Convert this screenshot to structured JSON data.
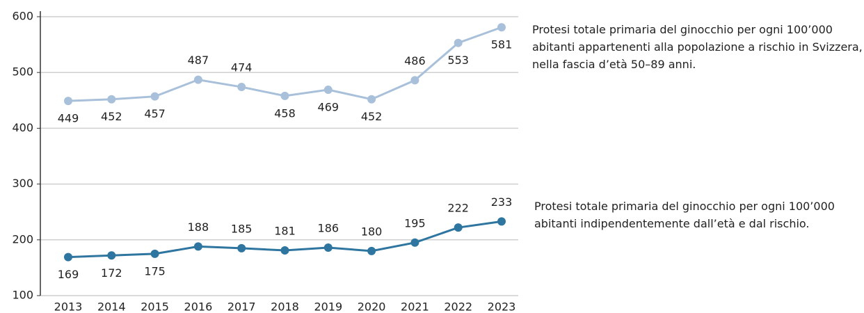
{
  "chart_data": {
    "type": "line",
    "categories": [
      "2013",
      "2014",
      "2015",
      "2016",
      "2017",
      "2018",
      "2019",
      "2020",
      "2021",
      "2022",
      "2023"
    ],
    "series": [
      {
        "name": "Protesi totale primaria del ginocchio  per ogni 100’000 abitanti appartenenti alla popolazione a rischio in Svizzera, nella fascia d’età 50–89 anni.",
        "color": "#a9c0da",
        "values": [
          449,
          452,
          457,
          487,
          474,
          458,
          469,
          452,
          486,
          553,
          581
        ]
      },
      {
        "name": "Protesi totale primaria del ginocchio per ogni 100’000 abitanti indipendentemente dall’età e dal rischio.",
        "color": "#2e75a0",
        "values": [
          169,
          172,
          175,
          188,
          185,
          181,
          186,
          180,
          195,
          222,
          233
        ]
      }
    ],
    "ylim": [
      100,
      600
    ],
    "yticks": [
      100,
      200,
      300,
      400,
      500,
      600
    ],
    "grid": true
  }
}
